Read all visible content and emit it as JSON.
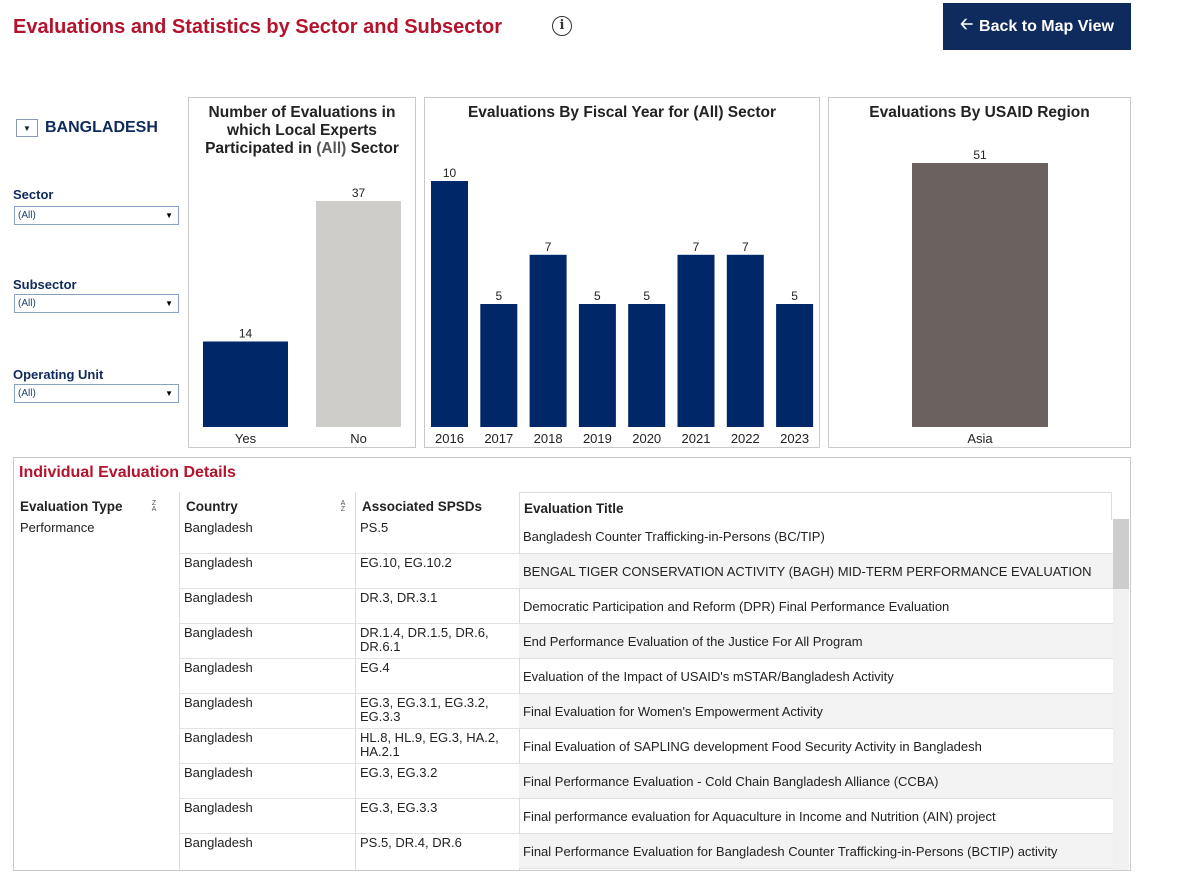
{
  "header": {
    "title": "Evaluations and Statistics by Sector and Subsector",
    "info_icon": "info-icon",
    "back_button": "Back to Map View",
    "back_icon": "arrow-left-icon"
  },
  "filters": {
    "country": "BANGLADESH",
    "sector": {
      "label": "Sector",
      "value": "(All)"
    },
    "subsector": {
      "label": "Subsector",
      "value": "(All)"
    },
    "operating_unit": {
      "label": "Operating Unit",
      "value": "(All)"
    }
  },
  "colors": {
    "navy": "#0f2a5c",
    "title_red": "#b5122c",
    "bar_navy": "#002868",
    "bar_grey": "#cecdc9",
    "bar_brown": "#6b625f"
  },
  "chart_data": [
    {
      "type": "bar",
      "title": "Number of Evaluations in which Local Experts Participated in (All) Sector",
      "categories": [
        "Yes",
        "No"
      ],
      "values": [
        14,
        37
      ],
      "ylim": [
        0,
        37
      ]
    },
    {
      "type": "bar",
      "title": "Evaluations By Fiscal Year for (All) Sector",
      "categories": [
        "2016",
        "2017",
        "2018",
        "2019",
        "2020",
        "2021",
        "2022",
        "2023"
      ],
      "values": [
        10,
        5,
        7,
        5,
        5,
        7,
        7,
        5
      ],
      "ylim": [
        0,
        10
      ]
    },
    {
      "type": "bar",
      "title": "Evaluations By USAID Region",
      "categories": [
        "Asia"
      ],
      "values": [
        51
      ],
      "ylim": [
        0,
        51
      ]
    }
  ],
  "details": {
    "title": "Individual Evaluation Details",
    "columns": [
      "Evaluation Type",
      "Country",
      "Associated SPSDs",
      "Evaluation Title"
    ],
    "evaluation_type": "Performance",
    "rows": [
      {
        "country": "Bangladesh",
        "spsds": "PS.5",
        "title": "Bangladesh Counter Trafficking-in-Persons (BC/TIP)"
      },
      {
        "country": "Bangladesh",
        "spsds": "EG.10, EG.10.2",
        "title": "BENGAL TIGER CONSERVATION ACTIVITY (BAGH) MID-TERM PERFORMANCE EVALUATION"
      },
      {
        "country": "Bangladesh",
        "spsds": "DR.3, DR.3.1",
        "title": "Democratic Participation and Reform (DPR) Final Performance Evaluation"
      },
      {
        "country": "Bangladesh",
        "spsds": "DR.1.4, DR.1.5, DR.6, DR.6.1",
        "title": "End Performance Evaluation of the Justice For All Program"
      },
      {
        "country": "Bangladesh",
        "spsds": "EG.4",
        "title": "Evaluation of the Impact of USAID's mSTAR/Bangladesh Activity"
      },
      {
        "country": "Bangladesh",
        "spsds": "EG.3, EG.3.1, EG.3.2, EG.3.3",
        "title": "Final Evaluation for Women's Empowerment Activity"
      },
      {
        "country": "Bangladesh",
        "spsds": "HL.8, HL.9, EG.3, HA.2, HA.2.1",
        "title": "Final Evaluation of SAPLING development Food Security Activity in Bangladesh"
      },
      {
        "country": "Bangladesh",
        "spsds": "EG.3, EG.3.2",
        "title": "Final Performance Evaluation - Cold Chain Bangladesh Alliance (CCBA)"
      },
      {
        "country": "Bangladesh",
        "spsds": "EG.3, EG.3.3",
        "title": "Final performance evaluation for Aquaculture in Income and Nutrition (AIN) project"
      },
      {
        "country": "Bangladesh",
        "spsds": "PS.5, DR.4, DR.6",
        "title": "Final Performance Evaluation for Bangladesh Counter Trafficking-in-Persons (BCTIP) activity"
      }
    ]
  }
}
